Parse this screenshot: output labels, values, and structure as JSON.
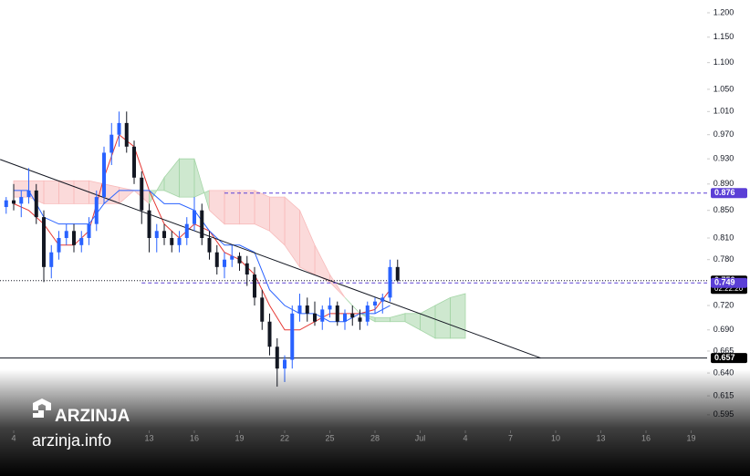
{
  "chart_data": {
    "type": "candlestick",
    "log_scale": true,
    "grid": false,
    "up_color": "#2962ff",
    "down_color": "#131722",
    "xlim": [
      -0.91,
      46.06
    ],
    "ylim": [
      0.579,
      1.227
    ],
    "xticks": [
      {
        "value": 0,
        "label": "4"
      },
      {
        "value": 9,
        "label": "13"
      },
      {
        "value": 12,
        "label": "16"
      },
      {
        "value": 15,
        "label": "19"
      },
      {
        "value": 18,
        "label": "22"
      },
      {
        "value": 21,
        "label": "25"
      },
      {
        "value": 24,
        "label": "28"
      },
      {
        "value": 27,
        "label": "Jul"
      },
      {
        "value": 30,
        "label": "4"
      },
      {
        "value": 33,
        "label": "7"
      },
      {
        "value": 36,
        "label": "10"
      },
      {
        "value": 39,
        "label": "13"
      },
      {
        "value": 42,
        "label": "16"
      },
      {
        "value": 45,
        "label": "19"
      }
    ],
    "yticks": [
      {
        "value": 1.2,
        "label": "1.200"
      },
      {
        "value": 1.15,
        "label": "1.150"
      },
      {
        "value": 1.1,
        "label": "1.100"
      },
      {
        "value": 1.05,
        "label": "1.050"
      },
      {
        "value": 1.01,
        "label": "1.010"
      },
      {
        "value": 0.97,
        "label": "0.970"
      },
      {
        "value": 0.93,
        "label": "0.930"
      },
      {
        "value": 0.89,
        "label": "0.890"
      },
      {
        "value": 0.85,
        "label": "0.850"
      },
      {
        "value": 0.81,
        "label": "0.810"
      },
      {
        "value": 0.78,
        "label": "0.780"
      },
      {
        "value": 0.72,
        "label": "0.720"
      },
      {
        "value": 0.69,
        "label": "0.690"
      },
      {
        "value": 0.665,
        "label": "0.665"
      },
      {
        "value": 0.64,
        "label": "0.640"
      },
      {
        "value": 0.615,
        "label": "0.615"
      },
      {
        "value": 0.595,
        "label": "0.595"
      }
    ],
    "x": [
      -0.5,
      0,
      0.5,
      1,
      1.5,
      2,
      2.5,
      3,
      3.5,
      4,
      4.5,
      5,
      5.5,
      6,
      6.5,
      7,
      7.5,
      8,
      8.5,
      9,
      9.5,
      10,
      10.5,
      11,
      11.5,
      12,
      12.5,
      13,
      13.5,
      14,
      14.5,
      15,
      15.5,
      16,
      16.5,
      17,
      17.5,
      18,
      18.5,
      19,
      19.5,
      20,
      20.5,
      21,
      21.5,
      22,
      22.5,
      23,
      23.5,
      24,
      24.5,
      25,
      25.5
    ],
    "open": [
      0.855,
      0.865,
      0.86,
      0.87,
      0.88,
      0.84,
      0.77,
      0.79,
      0.81,
      0.82,
      0.8,
      0.81,
      0.83,
      0.87,
      0.94,
      0.97,
      0.99,
      0.95,
      0.9,
      0.85,
      0.81,
      0.82,
      0.81,
      0.8,
      0.81,
      0.83,
      0.85,
      0.81,
      0.79,
      0.77,
      0.78,
      0.785,
      0.775,
      0.76,
      0.73,
      0.7,
      0.67,
      0.645,
      0.655,
      0.71,
      0.72,
      0.71,
      0.7,
      0.715,
      0.72,
      0.7,
      0.71,
      0.705,
      0.7,
      0.72,
      0.725,
      0.73,
      0.77
    ],
    "high": [
      0.87,
      0.89,
      0.88,
      0.915,
      0.89,
      0.85,
      0.8,
      0.82,
      0.83,
      0.83,
      0.82,
      0.84,
      0.88,
      0.95,
      0.99,
      1.01,
      1.01,
      0.96,
      0.91,
      0.86,
      0.83,
      0.83,
      0.82,
      0.82,
      0.84,
      0.87,
      0.86,
      0.82,
      0.8,
      0.79,
      0.8,
      0.79,
      0.785,
      0.77,
      0.74,
      0.71,
      0.68,
      0.66,
      0.72,
      0.735,
      0.73,
      0.725,
      0.72,
      0.73,
      0.725,
      0.715,
      0.72,
      0.715,
      0.725,
      0.73,
      0.735,
      0.78,
      0.78
    ],
    "low": [
      0.845,
      0.85,
      0.84,
      0.86,
      0.83,
      0.75,
      0.755,
      0.78,
      0.8,
      0.79,
      0.79,
      0.8,
      0.82,
      0.86,
      0.92,
      0.95,
      0.94,
      0.89,
      0.83,
      0.79,
      0.79,
      0.8,
      0.79,
      0.79,
      0.8,
      0.82,
      0.8,
      0.78,
      0.76,
      0.755,
      0.77,
      0.765,
      0.745,
      0.72,
      0.69,
      0.66,
      0.625,
      0.63,
      0.645,
      0.7,
      0.7,
      0.695,
      0.69,
      0.705,
      0.695,
      0.69,
      0.695,
      0.69,
      0.695,
      0.71,
      0.71,
      0.725,
      0.75
    ],
    "close": [
      0.865,
      0.86,
      0.87,
      0.88,
      0.84,
      0.77,
      0.79,
      0.81,
      0.82,
      0.8,
      0.81,
      0.83,
      0.87,
      0.94,
      0.97,
      0.99,
      0.95,
      0.9,
      0.85,
      0.81,
      0.82,
      0.81,
      0.8,
      0.81,
      0.83,
      0.85,
      0.81,
      0.79,
      0.77,
      0.78,
      0.785,
      0.775,
      0.76,
      0.73,
      0.7,
      0.67,
      0.645,
      0.655,
      0.71,
      0.72,
      0.71,
      0.7,
      0.715,
      0.72,
      0.7,
      0.71,
      0.705,
      0.7,
      0.72,
      0.725,
      0.73,
      0.77,
      0.752
    ],
    "cloud": {
      "x": [
        0,
        1,
        2,
        3,
        4,
        5,
        6,
        7,
        8,
        9,
        10,
        11,
        12,
        13,
        14,
        15,
        16,
        17,
        18,
        19,
        20,
        21,
        22,
        23,
        24,
        25,
        26,
        27,
        28,
        29,
        30
      ],
      "span_a": [
        0.87,
        0.87,
        0.86,
        0.86,
        0.86,
        0.86,
        0.86,
        0.86,
        0.88,
        0.86,
        0.9,
        0.93,
        0.93,
        0.85,
        0.83,
        0.83,
        0.83,
        0.82,
        0.8,
        0.77,
        0.76,
        0.75,
        0.73,
        0.71,
        0.705,
        0.705,
        0.71,
        0.71,
        0.72,
        0.73,
        0.735
      ],
      "span_b": [
        0.895,
        0.895,
        0.895,
        0.895,
        0.895,
        0.895,
        0.89,
        0.885,
        0.88,
        0.88,
        0.88,
        0.87,
        0.87,
        0.88,
        0.88,
        0.88,
        0.88,
        0.87,
        0.87,
        0.85,
        0.8,
        0.76,
        0.73,
        0.71,
        0.7,
        0.7,
        0.7,
        0.69,
        0.68,
        0.68,
        0.68
      ],
      "up_color": "#a5d6a7",
      "down_color": "#f8bbbb"
    },
    "lines": [
      {
        "x": [
          0,
          1,
          2,
          3,
          4,
          5,
          6,
          7,
          8,
          9,
          10,
          11,
          12,
          13,
          14,
          15,
          16,
          17,
          18,
          19,
          20,
          21,
          22,
          23,
          24,
          25
        ],
        "values": [
          0.86,
          0.85,
          0.83,
          0.8,
          0.8,
          0.82,
          0.9,
          0.97,
          0.95,
          0.88,
          0.83,
          0.81,
          0.83,
          0.82,
          0.79,
          0.78,
          0.76,
          0.72,
          0.69,
          0.69,
          0.7,
          0.71,
          0.71,
          0.71,
          0.715,
          0.74
        ],
        "color": "#e53935"
      },
      {
        "x": [
          0,
          1,
          2,
          3,
          4,
          5,
          6,
          7,
          8,
          9,
          10,
          11,
          12,
          13,
          14,
          15,
          16,
          17,
          18,
          19,
          20,
          21,
          22,
          23,
          24,
          25
        ],
        "values": [
          0.88,
          0.88,
          0.84,
          0.83,
          0.83,
          0.83,
          0.86,
          0.88,
          0.88,
          0.88,
          0.86,
          0.86,
          0.85,
          0.82,
          0.8,
          0.8,
          0.79,
          0.74,
          0.72,
          0.71,
          0.71,
          0.7,
          0.7,
          0.71,
          0.71,
          0.72
        ],
        "color": "#2962ff"
      },
      {
        "x": [
          -0.9,
          35
        ],
        "values": [
          0.929,
          0.657
        ],
        "color": "#131722"
      }
    ],
    "hlines": [
      {
        "value": 0.876,
        "label": "0.876",
        "style": "dashed",
        "color": "#5b3fd6",
        "from": 14
      },
      {
        "value": 0.752,
        "label": "0.752",
        "sublabel": "02:22:20",
        "style": "dotted",
        "color": "#131722",
        "from": -0.91
      },
      {
        "value": 0.749,
        "label": "0.749",
        "style": "dashed",
        "color": "#5b3fd6",
        "from": 8.5
      },
      {
        "value": 0.657,
        "label": "0.657",
        "style": "solid",
        "color": "#131722",
        "from": -0.91
      }
    ]
  },
  "watermark": {
    "brand": "ARZINJA",
    "site": "arzinja.info"
  }
}
